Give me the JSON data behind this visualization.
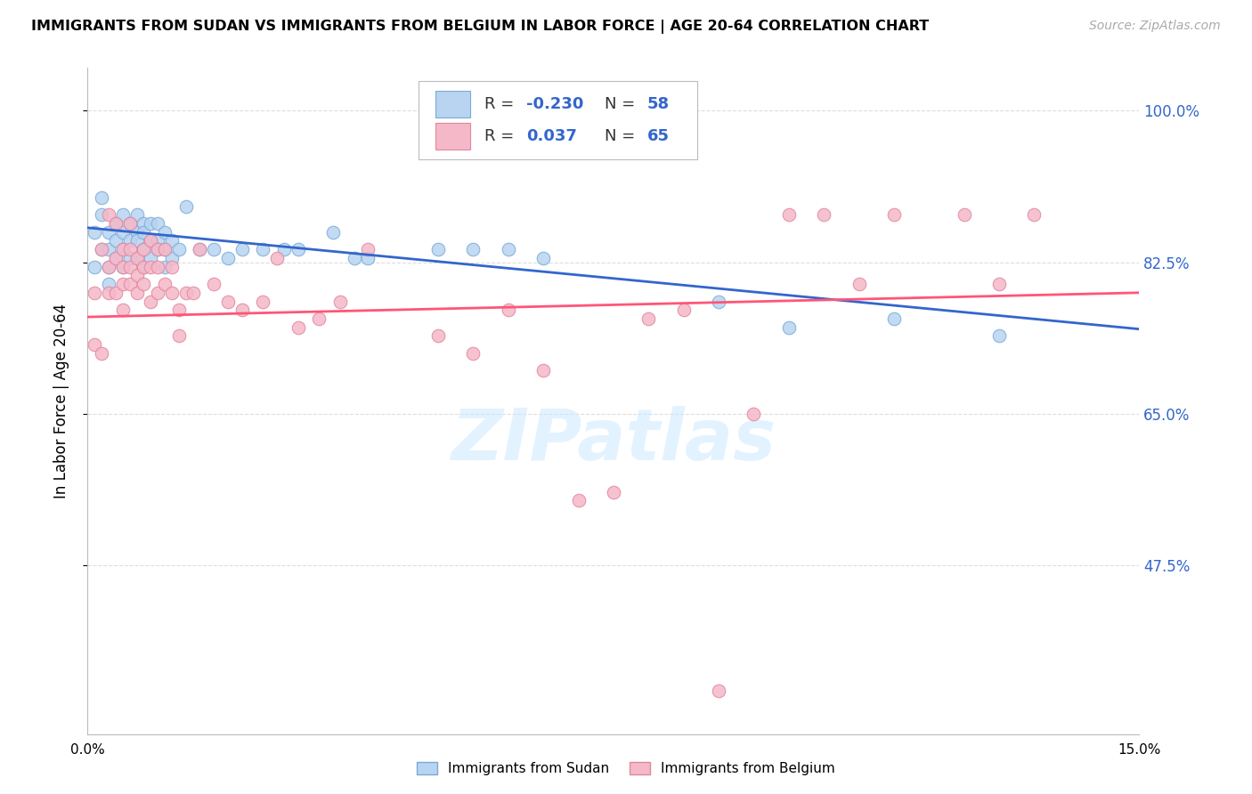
{
  "title": "IMMIGRANTS FROM SUDAN VS IMMIGRANTS FROM BELGIUM IN LABOR FORCE | AGE 20-64 CORRELATION CHART",
  "source": "Source: ZipAtlas.com",
  "ylabel": "In Labor Force | Age 20-64",
  "xlim": [
    0.0,
    0.15
  ],
  "ylim": [
    0.28,
    1.05
  ],
  "yticks": [
    0.475,
    0.65,
    0.825,
    1.0
  ],
  "ytick_labels": [
    "47.5%",
    "65.0%",
    "82.5%",
    "100.0%"
  ],
  "xtick_positions": [
    0.0,
    0.0167,
    0.0333,
    0.05,
    0.0667,
    0.0833,
    0.1,
    0.1167,
    0.1333,
    0.15
  ],
  "xtick_labels_show": [
    "0.0%",
    "",
    "",
    "",
    "",
    "",
    "",
    "",
    "",
    "15.0%"
  ],
  "sudan_color": "#b8d4f0",
  "sudan_edge_color": "#7aabda",
  "belgium_color": "#f5b8c8",
  "belgium_edge_color": "#e088a0",
  "trend_sudan_color": "#3366cc",
  "trend_belgium_color": "#ff5577",
  "legend_text_color": "#3366cc",
  "watermark_color": "#cce8ff",
  "sudan_R": "-0.230",
  "sudan_N": "58",
  "belgium_R": "0.037",
  "belgium_N": "65",
  "watermark": "ZIPatlas",
  "sudan_scatter_x": [
    0.001,
    0.001,
    0.002,
    0.002,
    0.002,
    0.003,
    0.003,
    0.003,
    0.003,
    0.004,
    0.004,
    0.004,
    0.005,
    0.005,
    0.005,
    0.005,
    0.006,
    0.006,
    0.006,
    0.007,
    0.007,
    0.007,
    0.007,
    0.008,
    0.008,
    0.008,
    0.008,
    0.009,
    0.009,
    0.009,
    0.01,
    0.01,
    0.01,
    0.011,
    0.011,
    0.011,
    0.012,
    0.012,
    0.013,
    0.014,
    0.016,
    0.018,
    0.02,
    0.022,
    0.025,
    0.028,
    0.03,
    0.035,
    0.038,
    0.04,
    0.05,
    0.055,
    0.06,
    0.065,
    0.09,
    0.1,
    0.115,
    0.13
  ],
  "sudan_scatter_y": [
    0.86,
    0.82,
    0.9,
    0.88,
    0.84,
    0.86,
    0.84,
    0.82,
    0.8,
    0.87,
    0.85,
    0.83,
    0.88,
    0.86,
    0.84,
    0.82,
    0.87,
    0.85,
    0.83,
    0.88,
    0.86,
    0.85,
    0.83,
    0.87,
    0.86,
    0.84,
    0.82,
    0.87,
    0.85,
    0.83,
    0.87,
    0.85,
    0.84,
    0.86,
    0.84,
    0.82,
    0.85,
    0.83,
    0.84,
    0.89,
    0.84,
    0.84,
    0.83,
    0.84,
    0.84,
    0.84,
    0.84,
    0.86,
    0.83,
    0.83,
    0.84,
    0.84,
    0.84,
    0.83,
    0.78,
    0.75,
    0.76,
    0.74
  ],
  "belgium_scatter_x": [
    0.001,
    0.001,
    0.002,
    0.002,
    0.003,
    0.003,
    0.003,
    0.004,
    0.004,
    0.004,
    0.005,
    0.005,
    0.005,
    0.005,
    0.006,
    0.006,
    0.006,
    0.006,
    0.007,
    0.007,
    0.007,
    0.008,
    0.008,
    0.008,
    0.009,
    0.009,
    0.009,
    0.01,
    0.01,
    0.01,
    0.011,
    0.011,
    0.012,
    0.012,
    0.013,
    0.013,
    0.014,
    0.015,
    0.016,
    0.018,
    0.02,
    0.022,
    0.025,
    0.027,
    0.03,
    0.033,
    0.036,
    0.04,
    0.05,
    0.055,
    0.06,
    0.065,
    0.07,
    0.075,
    0.08,
    0.085,
    0.09,
    0.095,
    0.1,
    0.105,
    0.11,
    0.115,
    0.125,
    0.13,
    0.135
  ],
  "belgium_scatter_y": [
    0.79,
    0.73,
    0.84,
    0.72,
    0.88,
    0.82,
    0.79,
    0.87,
    0.83,
    0.79,
    0.84,
    0.82,
    0.8,
    0.77,
    0.87,
    0.84,
    0.82,
    0.8,
    0.83,
    0.81,
    0.79,
    0.84,
    0.82,
    0.8,
    0.85,
    0.82,
    0.78,
    0.84,
    0.82,
    0.79,
    0.84,
    0.8,
    0.82,
    0.79,
    0.77,
    0.74,
    0.79,
    0.79,
    0.84,
    0.8,
    0.78,
    0.77,
    0.78,
    0.83,
    0.75,
    0.76,
    0.78,
    0.84,
    0.74,
    0.72,
    0.77,
    0.7,
    0.55,
    0.56,
    0.76,
    0.77,
    0.33,
    0.65,
    0.88,
    0.88,
    0.8,
    0.88,
    0.88,
    0.8,
    0.88
  ]
}
